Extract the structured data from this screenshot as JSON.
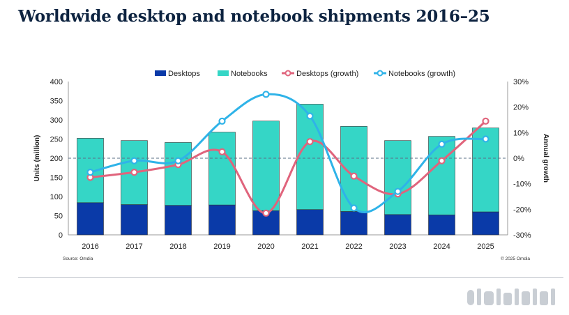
{
  "chart_data": {
    "type": "bar",
    "title": "Worldwide desktop and notebook shipments 2016–25",
    "categories": [
      "2016",
      "2017",
      "2018",
      "2019",
      "2020",
      "2021",
      "2022",
      "2023",
      "2024",
      "2025"
    ],
    "ylabel": "Units (million)",
    "y2label": "Annual growth",
    "ylim": [
      0,
      400
    ],
    "yticks": [
      "0",
      "50",
      "100",
      "150",
      "200",
      "250",
      "300",
      "350",
      "400"
    ],
    "y2lim": [
      -30,
      30
    ],
    "y2ticks": [
      "-30%",
      "-20%",
      "-10%",
      "0%",
      "10%",
      "20%",
      "30%"
    ],
    "stacked": true,
    "series": [
      {
        "name": "Desktops",
        "kind": "bar",
        "axis": "left",
        "color": "#0a3aa8",
        "values": [
          84,
          79,
          77,
          78,
          63,
          66,
          61,
          53,
          52,
          60
        ]
      },
      {
        "name": "Notebooks",
        "kind": "bar",
        "axis": "left",
        "color": "#35d6c6",
        "values": [
          168,
          167,
          164,
          190,
          234,
          275,
          222,
          193,
          205,
          219
        ]
      },
      {
        "name": "Desktops (growth)",
        "kind": "line",
        "axis": "right",
        "color": "#e0647c",
        "values": [
          -7.5,
          -5.5,
          -2.5,
          2.5,
          -21.5,
          6.5,
          -7,
          -14,
          -1,
          14.5
        ]
      },
      {
        "name": "Notebooks (growth)",
        "kind": "line",
        "axis": "right",
        "color": "#2fb3e8",
        "values": [
          -5.5,
          -1,
          -1,
          14.5,
          25,
          16.5,
          -19.5,
          -13,
          5.5,
          7.5
        ]
      }
    ],
    "legend_position": "top",
    "grid": false,
    "zero_line": "dashed",
    "source": "Source: Omdia",
    "copyright": "© 2025 Omdia"
  }
}
